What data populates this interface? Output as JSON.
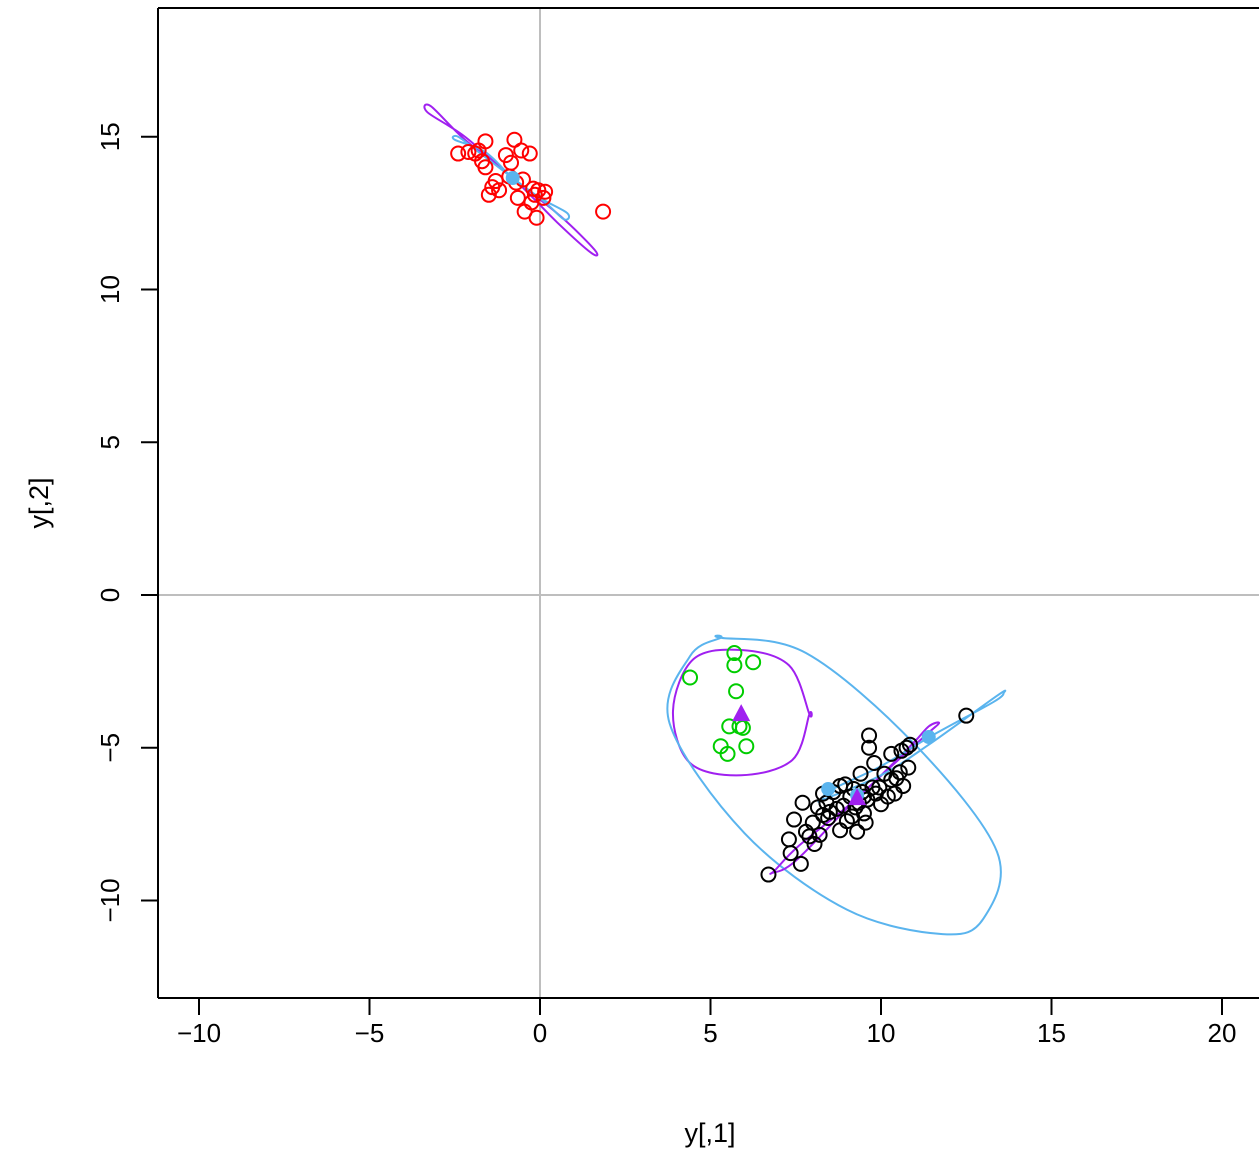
{
  "chart_data": {
    "type": "scatter",
    "title": "",
    "xlabel": "y[,1]",
    "ylabel": "y[,2]",
    "xlim": [
      -11.2,
      21.2
    ],
    "ylim": [
      -13.3,
      19.0
    ],
    "xticks": [
      -10,
      -5,
      0,
      5,
      10,
      15,
      20
    ],
    "yticks": [
      -10,
      -5,
      0,
      5,
      10,
      15
    ],
    "xtick_labels": [
      "−10",
      "−5",
      "0",
      "5",
      "10",
      "15",
      "20"
    ],
    "ytick_labels": [
      "−10",
      "−5",
      "0",
      "5",
      "10",
      "15"
    ],
    "reference_lines": {
      "v": 0,
      "h": 0,
      "color": "#bebebe"
    },
    "box": "left-bottom-top",
    "series": [
      {
        "color": "#ff0000",
        "marker": "open-circle",
        "points": [
          [
            -2.4,
            14.45
          ],
          [
            -2.1,
            14.5
          ],
          [
            -1.9,
            14.45
          ],
          [
            -1.8,
            14.55
          ],
          [
            -1.7,
            14.2
          ],
          [
            -1.6,
            14.0
          ],
          [
            -1.6,
            14.85
          ],
          [
            -1.5,
            13.1
          ],
          [
            -1.4,
            13.35
          ],
          [
            -1.3,
            13.55
          ],
          [
            -1.2,
            13.25
          ],
          [
            -1.0,
            14.4
          ],
          [
            -0.9,
            13.7
          ],
          [
            -0.85,
            14.15
          ],
          [
            -0.75,
            14.9
          ],
          [
            -0.7,
            13.5
          ],
          [
            -0.65,
            13.0
          ],
          [
            -0.55,
            14.55
          ],
          [
            -0.5,
            13.6
          ],
          [
            -0.45,
            12.55
          ],
          [
            -0.3,
            14.45
          ],
          [
            -0.25,
            12.85
          ],
          [
            -0.2,
            13.3
          ],
          [
            -0.15,
            13.1
          ],
          [
            -0.1,
            12.35
          ],
          [
            -0.05,
            13.25
          ],
          [
            0.1,
            13.0
          ],
          [
            0.15,
            13.2
          ],
          [
            1.85,
            12.55
          ]
        ],
        "center": [
          -0.8,
          13.65
        ]
      },
      {
        "color": "#00cd00",
        "marker": "open-circle",
        "points": [
          [
            4.4,
            -2.7
          ],
          [
            5.3,
            -4.95
          ],
          [
            5.5,
            -5.2
          ],
          [
            5.55,
            -4.3
          ],
          [
            5.7,
            -1.9
          ],
          [
            5.7,
            -2.3
          ],
          [
            5.75,
            -3.15
          ],
          [
            5.85,
            -4.3
          ],
          [
            5.95,
            -4.35
          ],
          [
            6.05,
            -4.95
          ],
          [
            6.25,
            -2.2
          ]
        ]
      },
      {
        "color": "#000000",
        "marker": "open-circle",
        "points": [
          [
            6.7,
            -9.15
          ],
          [
            7.3,
            -8.0
          ],
          [
            7.35,
            -8.45
          ],
          [
            7.45,
            -7.35
          ],
          [
            7.65,
            -8.8
          ],
          [
            7.7,
            -6.8
          ],
          [
            7.8,
            -7.75
          ],
          [
            7.9,
            -7.9
          ],
          [
            8.0,
            -7.45
          ],
          [
            8.05,
            -8.15
          ],
          [
            8.15,
            -6.95
          ],
          [
            8.2,
            -7.85
          ],
          [
            8.3,
            -6.5
          ],
          [
            8.3,
            -7.2
          ],
          [
            8.4,
            -6.8
          ],
          [
            8.45,
            -7.3
          ],
          [
            8.5,
            -7.1
          ],
          [
            8.6,
            -6.45
          ],
          [
            8.7,
            -7.0
          ],
          [
            8.8,
            -6.25
          ],
          [
            8.8,
            -7.7
          ],
          [
            8.9,
            -6.9
          ],
          [
            8.95,
            -6.2
          ],
          [
            9.0,
            -7.4
          ],
          [
            9.1,
            -6.6
          ],
          [
            9.15,
            -7.25
          ],
          [
            9.2,
            -6.35
          ],
          [
            9.25,
            -6.95
          ],
          [
            9.3,
            -7.75
          ],
          [
            9.35,
            -6.8
          ],
          [
            9.4,
            -5.85
          ],
          [
            9.45,
            -6.45
          ],
          [
            9.5,
            -7.15
          ],
          [
            9.5,
            -6.6
          ],
          [
            9.55,
            -7.45
          ],
          [
            9.6,
            -6.7
          ],
          [
            9.65,
            -5.0
          ],
          [
            9.65,
            -4.6
          ],
          [
            9.75,
            -6.3
          ],
          [
            9.8,
            -5.5
          ],
          [
            9.85,
            -6.5
          ],
          [
            9.95,
            -6.3
          ],
          [
            10.0,
            -6.85
          ],
          [
            10.1,
            -5.85
          ],
          [
            10.2,
            -6.6
          ],
          [
            10.3,
            -6.05
          ],
          [
            10.3,
            -5.2
          ],
          [
            10.4,
            -6.5
          ],
          [
            10.45,
            -6.0
          ],
          [
            10.55,
            -5.8
          ],
          [
            10.6,
            -5.1
          ],
          [
            10.65,
            -6.25
          ],
          [
            10.75,
            -5.0
          ],
          [
            10.8,
            -5.65
          ],
          [
            10.85,
            -4.9
          ],
          [
            12.5,
            -3.95
          ]
        ]
      }
    ],
    "centers": [
      {
        "color": "#5ab4ee",
        "marker": "filled-circle",
        "points": [
          [
            -0.8,
            13.65
          ],
          [
            8.45,
            -6.35
          ],
          [
            11.4,
            -4.65
          ],
          [
            9.3,
            -6.55
          ]
        ]
      },
      {
        "color": "#a020f0",
        "marker": "filled-triangle",
        "points": [
          [
            5.9,
            -3.9
          ],
          [
            9.3,
            -6.65
          ]
        ]
      }
    ],
    "ellipses": [
      {
        "color": "#a020f0",
        "center": [
          -0.8,
          13.65
        ],
        "points": [
          [
            -3.2,
            16.0
          ],
          [
            -2.2,
            14.9
          ],
          [
            -0.8,
            13.65
          ],
          [
            0.5,
            12.2
          ],
          [
            1.5,
            11.2
          ],
          [
            1.6,
            11.3
          ],
          [
            0.6,
            12.4
          ],
          [
            -0.8,
            13.65
          ],
          [
            -2.2,
            15.0
          ],
          [
            -3.3,
            15.8
          ]
        ]
      },
      {
        "color": "#5ab4ee",
        "center": [
          -0.8,
          13.65
        ],
        "points": [
          [
            -2.5,
            14.9
          ],
          [
            -1.6,
            14.5
          ],
          [
            -0.8,
            13.65
          ],
          [
            0.1,
            12.9
          ],
          [
            0.7,
            12.3
          ],
          [
            0.8,
            12.5
          ],
          [
            0.0,
            13.0
          ],
          [
            -0.8,
            13.65
          ],
          [
            -1.8,
            14.5
          ],
          [
            -2.4,
            15.0
          ]
        ]
      },
      {
        "color": "#a020f0",
        "center": [
          5.9,
          -3.85
        ],
        "points": [
          [
            7.9,
            -3.9
          ],
          [
            7.3,
            -2.3
          ],
          [
            5.9,
            -1.8
          ],
          [
            4.5,
            -2.1
          ],
          [
            3.9,
            -3.8
          ],
          [
            4.4,
            -5.5
          ],
          [
            5.9,
            -5.9
          ],
          [
            7.4,
            -5.4
          ],
          [
            7.9,
            -3.9
          ]
        ]
      },
      {
        "color": "#5ab4ee",
        "center": [
          8.6,
          -6.3
        ],
        "points": [
          [
            5.3,
            -1.4
          ],
          [
            7.8,
            -1.9
          ],
          [
            11.0,
            -4.9
          ],
          [
            13.4,
            -8.4
          ],
          [
            13.0,
            -10.6
          ],
          [
            11.8,
            -11.1
          ],
          [
            9.0,
            -10.3
          ],
          [
            6.0,
            -7.8
          ],
          [
            3.8,
            -4.2
          ],
          [
            4.4,
            -2.0
          ],
          [
            5.3,
            -1.4
          ]
        ]
      },
      {
        "color": "#a020f0",
        "center": [
          9.3,
          -6.65
        ],
        "points": [
          [
            6.8,
            -9.1
          ],
          [
            7.5,
            -8.7
          ],
          [
            9.3,
            -6.65
          ],
          [
            11.2,
            -4.7
          ],
          [
            11.7,
            -4.2
          ],
          [
            11.4,
            -4.3
          ],
          [
            10.9,
            -4.9
          ],
          [
            9.3,
            -6.65
          ],
          [
            7.6,
            -8.2
          ],
          [
            6.9,
            -9.0
          ]
        ]
      },
      {
        "color": "#5ab4ee",
        "center": [
          10.9,
          -5.1
        ],
        "points": [
          [
            8.3,
            -6.7
          ],
          [
            10.0,
            -5.9
          ],
          [
            11.4,
            -4.9
          ],
          [
            13.4,
            -3.3
          ],
          [
            13.6,
            -3.2
          ],
          [
            13.3,
            -3.5
          ],
          [
            11.5,
            -4.6
          ],
          [
            10.0,
            -5.6
          ],
          [
            8.5,
            -6.4
          ],
          [
            8.3,
            -6.7
          ]
        ]
      }
    ]
  }
}
